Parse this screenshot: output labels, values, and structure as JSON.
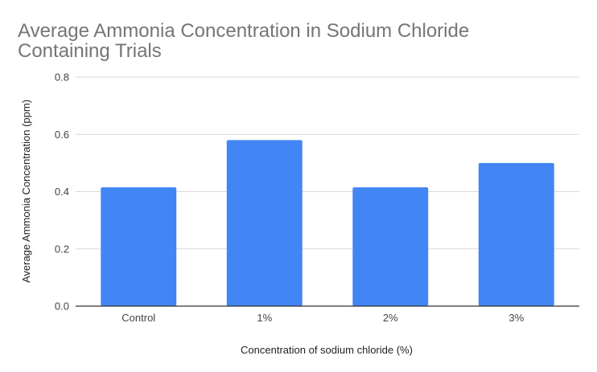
{
  "chart_data": {
    "type": "bar",
    "title": "Average Ammonia Concentration in Sodium Chloride Containing Trials",
    "title_lines": [
      "Average Ammonia Concentration in Sodium Chloride",
      "Containing Trials"
    ],
    "xlabel": "Concentration of sodium chloride (%)",
    "ylabel": "Average Ammonia Concentration (ppm)",
    "categories": [
      "Control",
      "1%",
      "2%",
      "3%"
    ],
    "values": [
      0.415,
      0.58,
      0.415,
      0.5
    ],
    "ylim": [
      0,
      0.8
    ],
    "yticks": [
      "0.0",
      "0.2",
      "0.4",
      "0.6",
      "0.8"
    ],
    "grid": true,
    "legend": "none",
    "bar_color": "#4285f4",
    "grid_color": "#d9d9d9",
    "axis_color": "#333333"
  }
}
